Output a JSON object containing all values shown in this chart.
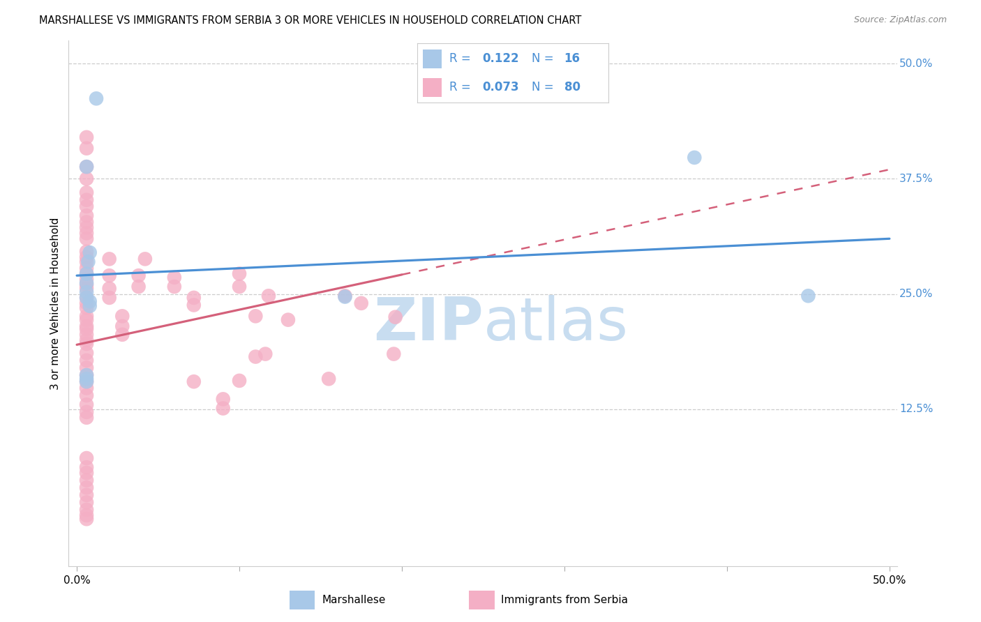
{
  "title": "MARSHALLESE VS IMMIGRANTS FROM SERBIA 3 OR MORE VEHICLES IN HOUSEHOLD CORRELATION CHART",
  "source": "Source: ZipAtlas.com",
  "ylabel": "3 or more Vehicles in Household",
  "xlim": [
    -0.005,
    0.505
  ],
  "ylim": [
    -0.045,
    0.525
  ],
  "ytick_vals": [
    0.0,
    0.125,
    0.25,
    0.375,
    0.5
  ],
  "ytick_labels": [
    "",
    "12.5%",
    "25.0%",
    "37.5%",
    "50.0%"
  ],
  "marshallese_R": 0.122,
  "marshallese_N": 16,
  "serbia_R": 0.073,
  "serbia_N": 80,
  "marshallese_color": "#a8c8e8",
  "serbia_color": "#f4afc5",
  "legend_text_color": "#4a8fd4",
  "marshallese_line_color": "#4a8fd4",
  "serbia_line_color": "#d4607a",
  "watermark_color": "#c8ddf0",
  "marshallese_line_start_y": 0.27,
  "marshallese_line_end_y": 0.31,
  "serbia_line_start_y": 0.195,
  "serbia_line_end_y": 0.385,
  "marshallese_x": [
    0.012,
    0.006,
    0.006,
    0.006,
    0.006,
    0.006,
    0.008,
    0.008,
    0.006,
    0.006,
    0.006,
    0.008,
    0.007,
    0.45,
    0.38,
    0.165
  ],
  "marshallese_y": [
    0.462,
    0.388,
    0.272,
    0.262,
    0.252,
    0.246,
    0.242,
    0.237,
    0.162,
    0.158,
    0.155,
    0.295,
    0.285,
    0.248,
    0.398,
    0.247
  ],
  "serbia_x": [
    0.006,
    0.006,
    0.006,
    0.006,
    0.006,
    0.006,
    0.006,
    0.006,
    0.006,
    0.006,
    0.006,
    0.006,
    0.006,
    0.006,
    0.006,
    0.006,
    0.006,
    0.006,
    0.006,
    0.006,
    0.006,
    0.006,
    0.006,
    0.006,
    0.006,
    0.006,
    0.006,
    0.006,
    0.006,
    0.006,
    0.006,
    0.006,
    0.006,
    0.006,
    0.006,
    0.006,
    0.006,
    0.006,
    0.006,
    0.006,
    0.02,
    0.02,
    0.02,
    0.02,
    0.028,
    0.028,
    0.028,
    0.038,
    0.038,
    0.042,
    0.06,
    0.06,
    0.072,
    0.072,
    0.072,
    0.09,
    0.09,
    0.1,
    0.1,
    0.1,
    0.11,
    0.11,
    0.116,
    0.118,
    0.13,
    0.155,
    0.165,
    0.175,
    0.195,
    0.196,
    0.006,
    0.006,
    0.006,
    0.006,
    0.006,
    0.006,
    0.006,
    0.006,
    0.006,
    0.006
  ],
  "serbia_y": [
    0.42,
    0.408,
    0.388,
    0.375,
    0.36,
    0.352,
    0.345,
    0.335,
    0.328,
    0.322,
    0.316,
    0.31,
    0.296,
    0.29,
    0.285,
    0.278,
    0.272,
    0.266,
    0.26,
    0.256,
    0.246,
    0.24,
    0.235,
    0.226,
    0.222,
    0.215,
    0.212,
    0.206,
    0.2,
    0.196,
    0.186,
    0.178,
    0.17,
    0.162,
    0.155,
    0.148,
    0.14,
    0.13,
    0.122,
    0.116,
    0.288,
    0.27,
    0.256,
    0.246,
    0.215,
    0.206,
    0.226,
    0.27,
    0.258,
    0.288,
    0.268,
    0.258,
    0.155,
    0.246,
    0.238,
    0.136,
    0.126,
    0.272,
    0.258,
    0.156,
    0.182,
    0.226,
    0.185,
    0.248,
    0.222,
    0.158,
    0.248,
    0.24,
    0.185,
    0.225,
    0.072,
    0.062,
    0.056,
    0.048,
    0.04,
    0.032,
    0.024,
    0.016,
    0.01,
    0.006
  ]
}
